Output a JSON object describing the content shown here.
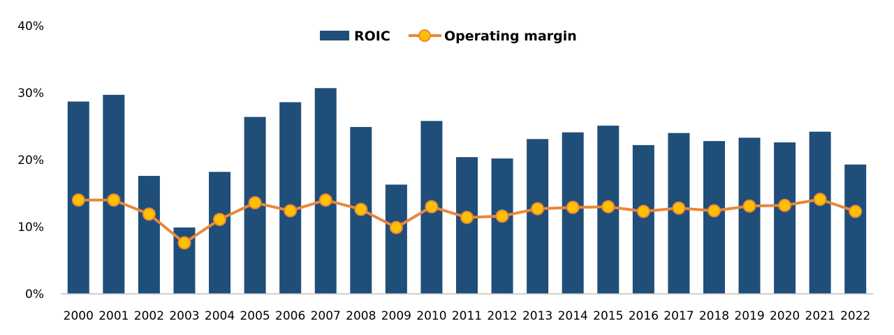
{
  "chart_data": {
    "type": "bar",
    "categories": [
      "2000",
      "2001",
      "2002",
      "2003",
      "2004",
      "2005",
      "2006",
      "2007",
      "2008",
      "2009",
      "2010",
      "2011",
      "2012",
      "2013",
      "2014",
      "2015",
      "2016",
      "2017",
      "2018",
      "2019",
      "2020",
      "2021",
      "2022"
    ],
    "series": [
      {
        "name": "ROIC",
        "type": "bar",
        "color": "#1f4e79",
        "values": [
          28.7,
          29.7,
          17.6,
          9.9,
          18.2,
          26.4,
          28.6,
          30.7,
          24.9,
          16.3,
          25.8,
          20.4,
          20.2,
          23.1,
          24.1,
          25.1,
          22.2,
          24.0,
          22.8,
          23.3,
          22.6,
          24.2,
          19.3
        ]
      },
      {
        "name": "Operating margin",
        "type": "line",
        "color": "#e8873a",
        "marker_fill": "#ffc000",
        "values": [
          14.0,
          14.0,
          11.9,
          7.6,
          11.1,
          13.6,
          12.4,
          14.0,
          12.6,
          9.9,
          13.0,
          11.4,
          11.6,
          12.7,
          12.9,
          13.0,
          12.3,
          12.8,
          12.4,
          13.1,
          13.2,
          14.1,
          12.3
        ]
      }
    ],
    "yticks": [
      "0%",
      "10%",
      "20%",
      "30%",
      "40%"
    ],
    "ylim": [
      0,
      40
    ],
    "grid": false,
    "legend_position": "top-center",
    "title": "",
    "xlabel": "",
    "ylabel": ""
  }
}
